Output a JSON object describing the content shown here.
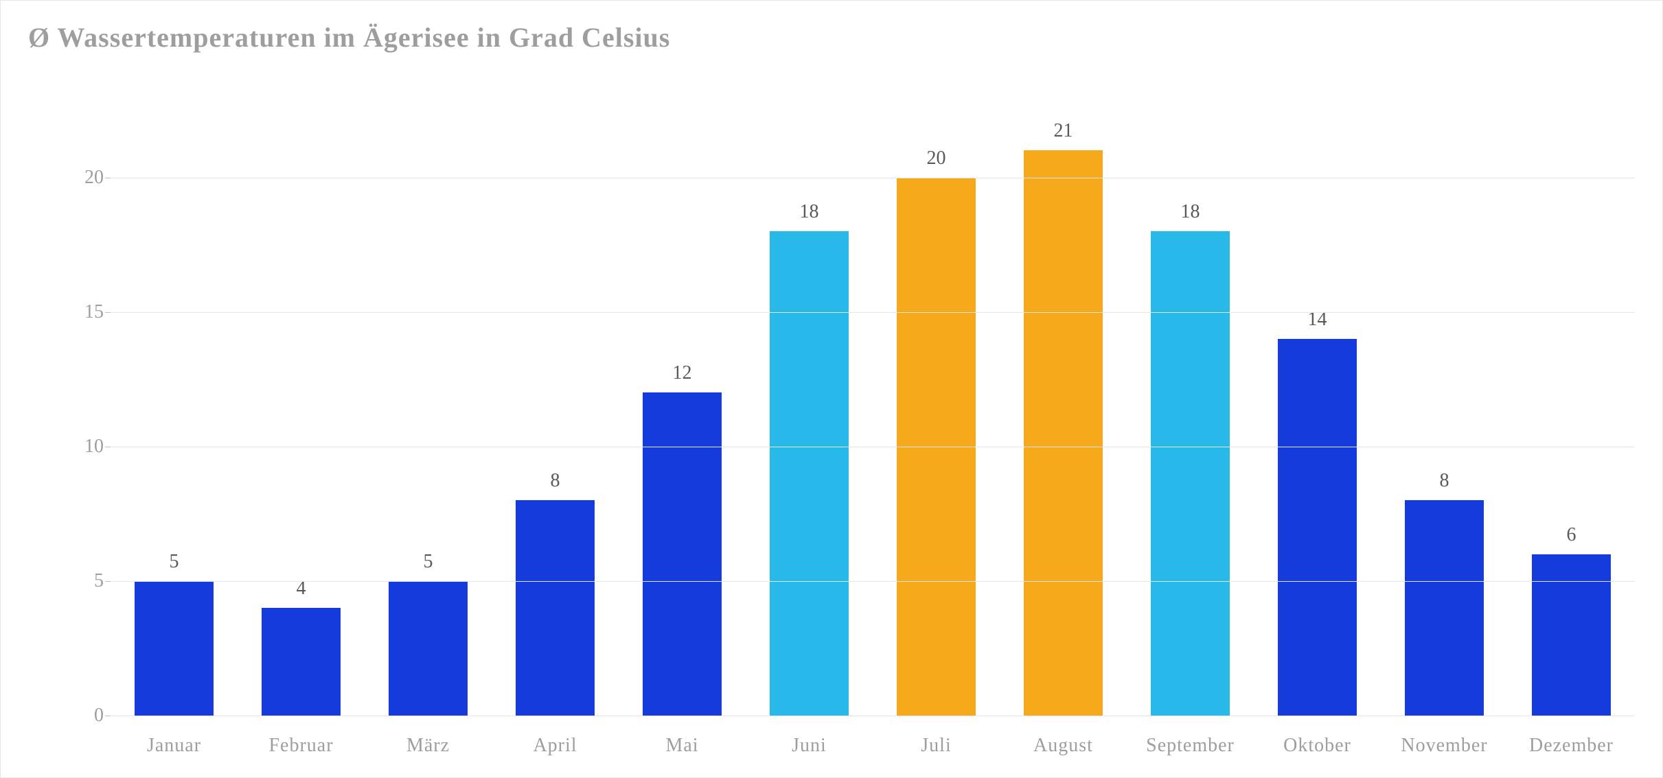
{
  "chart": {
    "type": "bar",
    "title": "Ø Wassertemperaturen im Ägerisee in Grad Celsius",
    "title_color": "#9e9e9e",
    "title_fontsize": 40,
    "background_color": "#ffffff",
    "border_color": "#e6e6e6",
    "grid_color": "#e6e6e6",
    "axis_color": "#bfbfbf",
    "axis_label_color": "#9e9e9e",
    "value_label_color": "#595959",
    "label_fontsize": 28,
    "value_fontsize": 28,
    "ylim": [
      0,
      23
    ],
    "yticks": [
      0,
      5,
      10,
      15,
      20
    ],
    "bar_width_ratio": 0.62,
    "categories": [
      "Januar",
      "Februar",
      "März",
      "April",
      "Mai",
      "Juni",
      "Juli",
      "August",
      "September",
      "Oktober",
      "November",
      "Dezember"
    ],
    "values": [
      5,
      4,
      5,
      8,
      12,
      18,
      20,
      21,
      18,
      14,
      8,
      6
    ],
    "bar_colors": [
      "#163bdd",
      "#163bdd",
      "#163bdd",
      "#163bdd",
      "#163bdd",
      "#29b8ea",
      "#f6a91b",
      "#f6a91b",
      "#29b8ea",
      "#163bdd",
      "#163bdd",
      "#163bdd"
    ]
  }
}
